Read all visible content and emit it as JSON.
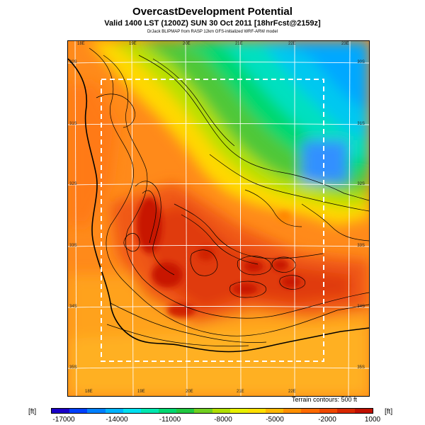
{
  "title": "OvercastDevelopment Potential",
  "subtitle": "Valid 1400 LST (1200Z) SUN 30 Oct 2011 [18hrFcst@2159z]",
  "credit": "DrJack BLIPMAP from RASP 12km GFS-initialized WRF-ARW model",
  "terrain_note": "Terrain contours: 500 ft",
  "unit_label": "[ft]",
  "longitude_labels_top": [
    "18E",
    "19E",
    "20E",
    "21E",
    "22E",
    "23E"
  ],
  "longitude_labels_bottom": [
    "18E",
    "19E",
    "20E",
    "21E",
    "22E"
  ],
  "latitude_labels_left": [
    "30S",
    "31S",
    "32S",
    "33S",
    "34S",
    "35S"
  ],
  "latitude_labels_right": [
    "30S",
    "31S",
    "32S",
    "33S",
    "34S",
    "35S"
  ],
  "colorbar": {
    "labels": [
      "-17000",
      "-14000",
      "-11000",
      "-8000",
      "-5000",
      "-2000",
      "1000"
    ],
    "colors": [
      "#1a00c8",
      "#0040ff",
      "#0080ff",
      "#00b4ff",
      "#00e0f0",
      "#00e8b0",
      "#00d870",
      "#20c840",
      "#70d020",
      "#b0e000",
      "#e8f000",
      "#ffe000",
      "#ffb800",
      "#ff9000",
      "#ff6a00",
      "#f04800",
      "#d82800",
      "#c01000"
    ]
  },
  "colors": {
    "background": "#ffffff",
    "grid": "#ffffff",
    "contour": "#000000"
  }
}
